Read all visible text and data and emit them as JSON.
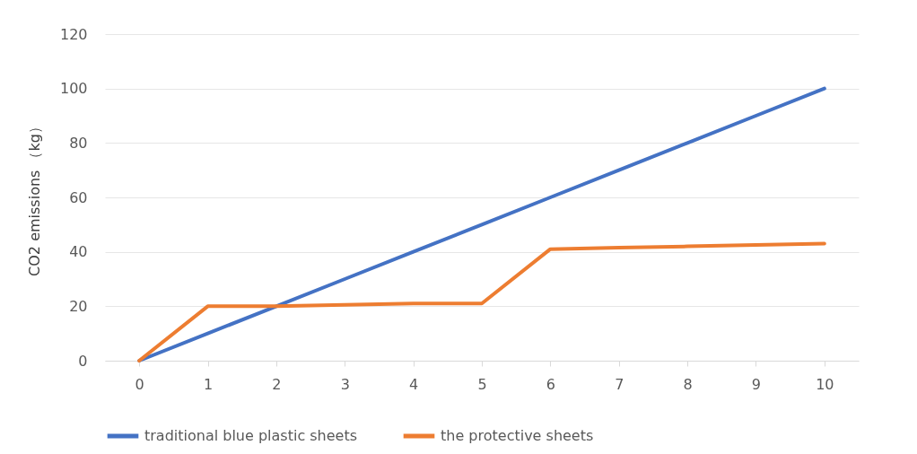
{
  "chart_data": {
    "type": "line",
    "ylabel": "CO2 emissions （kg）",
    "categories": [
      "0",
      "1",
      "2",
      "3",
      "4",
      "5",
      "6",
      "7",
      "8",
      "9",
      "10"
    ],
    "series": [
      {
        "name": "traditional blue plastic sheets",
        "color": "#4472c4",
        "values": [
          0,
          10,
          20,
          30,
          40,
          50,
          60,
          70,
          80,
          90,
          100
        ]
      },
      {
        "name": "the protective sheets",
        "color": "#ed7d31",
        "values": [
          0,
          20,
          20,
          20.5,
          21,
          21,
          41,
          41.5,
          42,
          42.5,
          43
        ]
      }
    ],
    "ylim": [
      0,
      120
    ],
    "yticks": [
      0,
      20,
      40,
      60,
      80,
      100,
      120
    ],
    "grid": "y",
    "legend": "bottom",
    "marker": "none",
    "line_style": "solid"
  }
}
